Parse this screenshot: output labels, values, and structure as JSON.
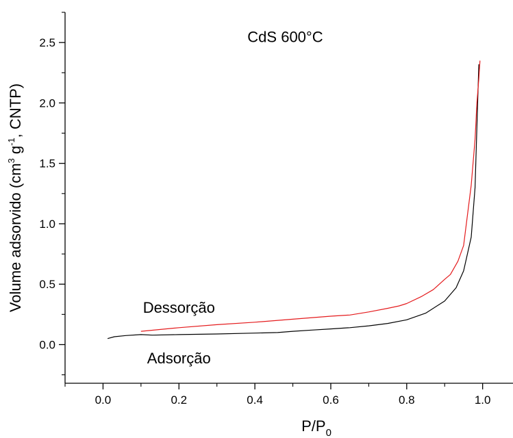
{
  "chart_data": {
    "type": "line",
    "title": "CdS 600°C",
    "xlabel": {
      "main": "P/P",
      "sub": "0"
    },
    "ylabel": {
      "pre": "Volume adsorvido (cm",
      "sup1": "3",
      "mid": " g",
      "sup2": "-1",
      "post": ", CNTP)"
    },
    "xlim": [
      -0.1,
      1.08
    ],
    "ylim": [
      -0.32,
      2.75
    ],
    "xticks": [
      0.0,
      0.2,
      0.4,
      0.6,
      0.8,
      1.0
    ],
    "xtick_labels": [
      "0.0",
      "0.2",
      "0.4",
      "0.6",
      "0.8",
      "1.0"
    ],
    "yticks": [
      0.0,
      0.5,
      1.0,
      1.5,
      2.0,
      2.5
    ],
    "ytick_labels": [
      "0.0",
      "0.5",
      "1.0",
      "1.5",
      "2.0",
      "2.5"
    ],
    "series": [
      {
        "name": "Adsorção",
        "color": "#000000",
        "x": [
          0.012,
          0.03,
          0.06,
          0.1,
          0.13,
          0.2,
          0.3,
          0.4,
          0.46,
          0.5,
          0.55,
          0.6,
          0.65,
          0.7,
          0.75,
          0.8,
          0.85,
          0.9,
          0.93,
          0.95,
          0.97,
          0.98,
          0.985,
          0.99
        ],
        "y": [
          0.05,
          0.065,
          0.075,
          0.083,
          0.078,
          0.083,
          0.088,
          0.095,
          0.1,
          0.11,
          0.12,
          0.13,
          0.14,
          0.155,
          0.175,
          0.205,
          0.26,
          0.36,
          0.47,
          0.61,
          0.89,
          1.3,
          1.8,
          2.32
        ]
      },
      {
        "name": "Dessorção",
        "color": "#e41a1c",
        "x": [
          0.1,
          0.2,
          0.3,
          0.4,
          0.5,
          0.6,
          0.65,
          0.7,
          0.75,
          0.78,
          0.8,
          0.84,
          0.87,
          0.9,
          0.915,
          0.935,
          0.95,
          0.97,
          0.98,
          0.985,
          0.99,
          0.993
        ],
        "y": [
          0.11,
          0.14,
          0.165,
          0.185,
          0.21,
          0.235,
          0.245,
          0.27,
          0.3,
          0.32,
          0.34,
          0.4,
          0.455,
          0.54,
          0.58,
          0.69,
          0.82,
          1.32,
          1.7,
          2.0,
          2.2,
          2.35
        ]
      }
    ],
    "annotations": [
      {
        "text": "CdS 600°C",
        "x": 0.48,
        "y": 2.55
      },
      {
        "text": "Dessorção",
        "x": 0.2,
        "y": 0.31
      },
      {
        "text": "Adsorção",
        "x": 0.2,
        "y": -0.11
      }
    ],
    "grid": false,
    "legend": "none"
  }
}
